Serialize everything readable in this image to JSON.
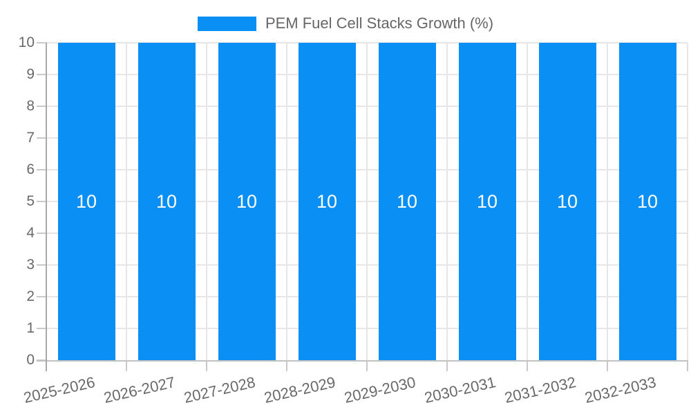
{
  "chart_data": {
    "type": "bar",
    "title": "",
    "legend": {
      "label": "PEM Fuel Cell Stacks Growth (%)",
      "position": "top-center"
    },
    "categories": [
      "2025-2026",
      "2026-2027",
      "2027-2028",
      "2028-2029",
      "2029-2030",
      "2030-2031",
      "2031-2032",
      "2032-2033"
    ],
    "series": [
      {
        "name": "PEM Fuel Cell Stacks Growth (%)",
        "values": [
          10,
          10,
          10,
          10,
          10,
          10,
          10,
          10
        ]
      }
    ],
    "bar_value_labels": [
      "10",
      "10",
      "10",
      "10",
      "10",
      "10",
      "10",
      "10"
    ],
    "ylim": [
      0,
      10
    ],
    "yticks": [
      0,
      1,
      2,
      3,
      4,
      5,
      6,
      7,
      8,
      9,
      10
    ],
    "grid": true,
    "x_label_rotation_deg": -13,
    "legend_toggle": true,
    "colors": {
      "bar": "#0a90f4",
      "bar_label": "#ffffff",
      "axis_text": "#696969",
      "legend_text": "#666666",
      "gridline": "#e6e6e6",
      "tick": "#c9c9c9",
      "y_axis_line": "#a9a9a9",
      "x_axis_line": "#c2c2c2",
      "background": "#ffffff"
    }
  }
}
